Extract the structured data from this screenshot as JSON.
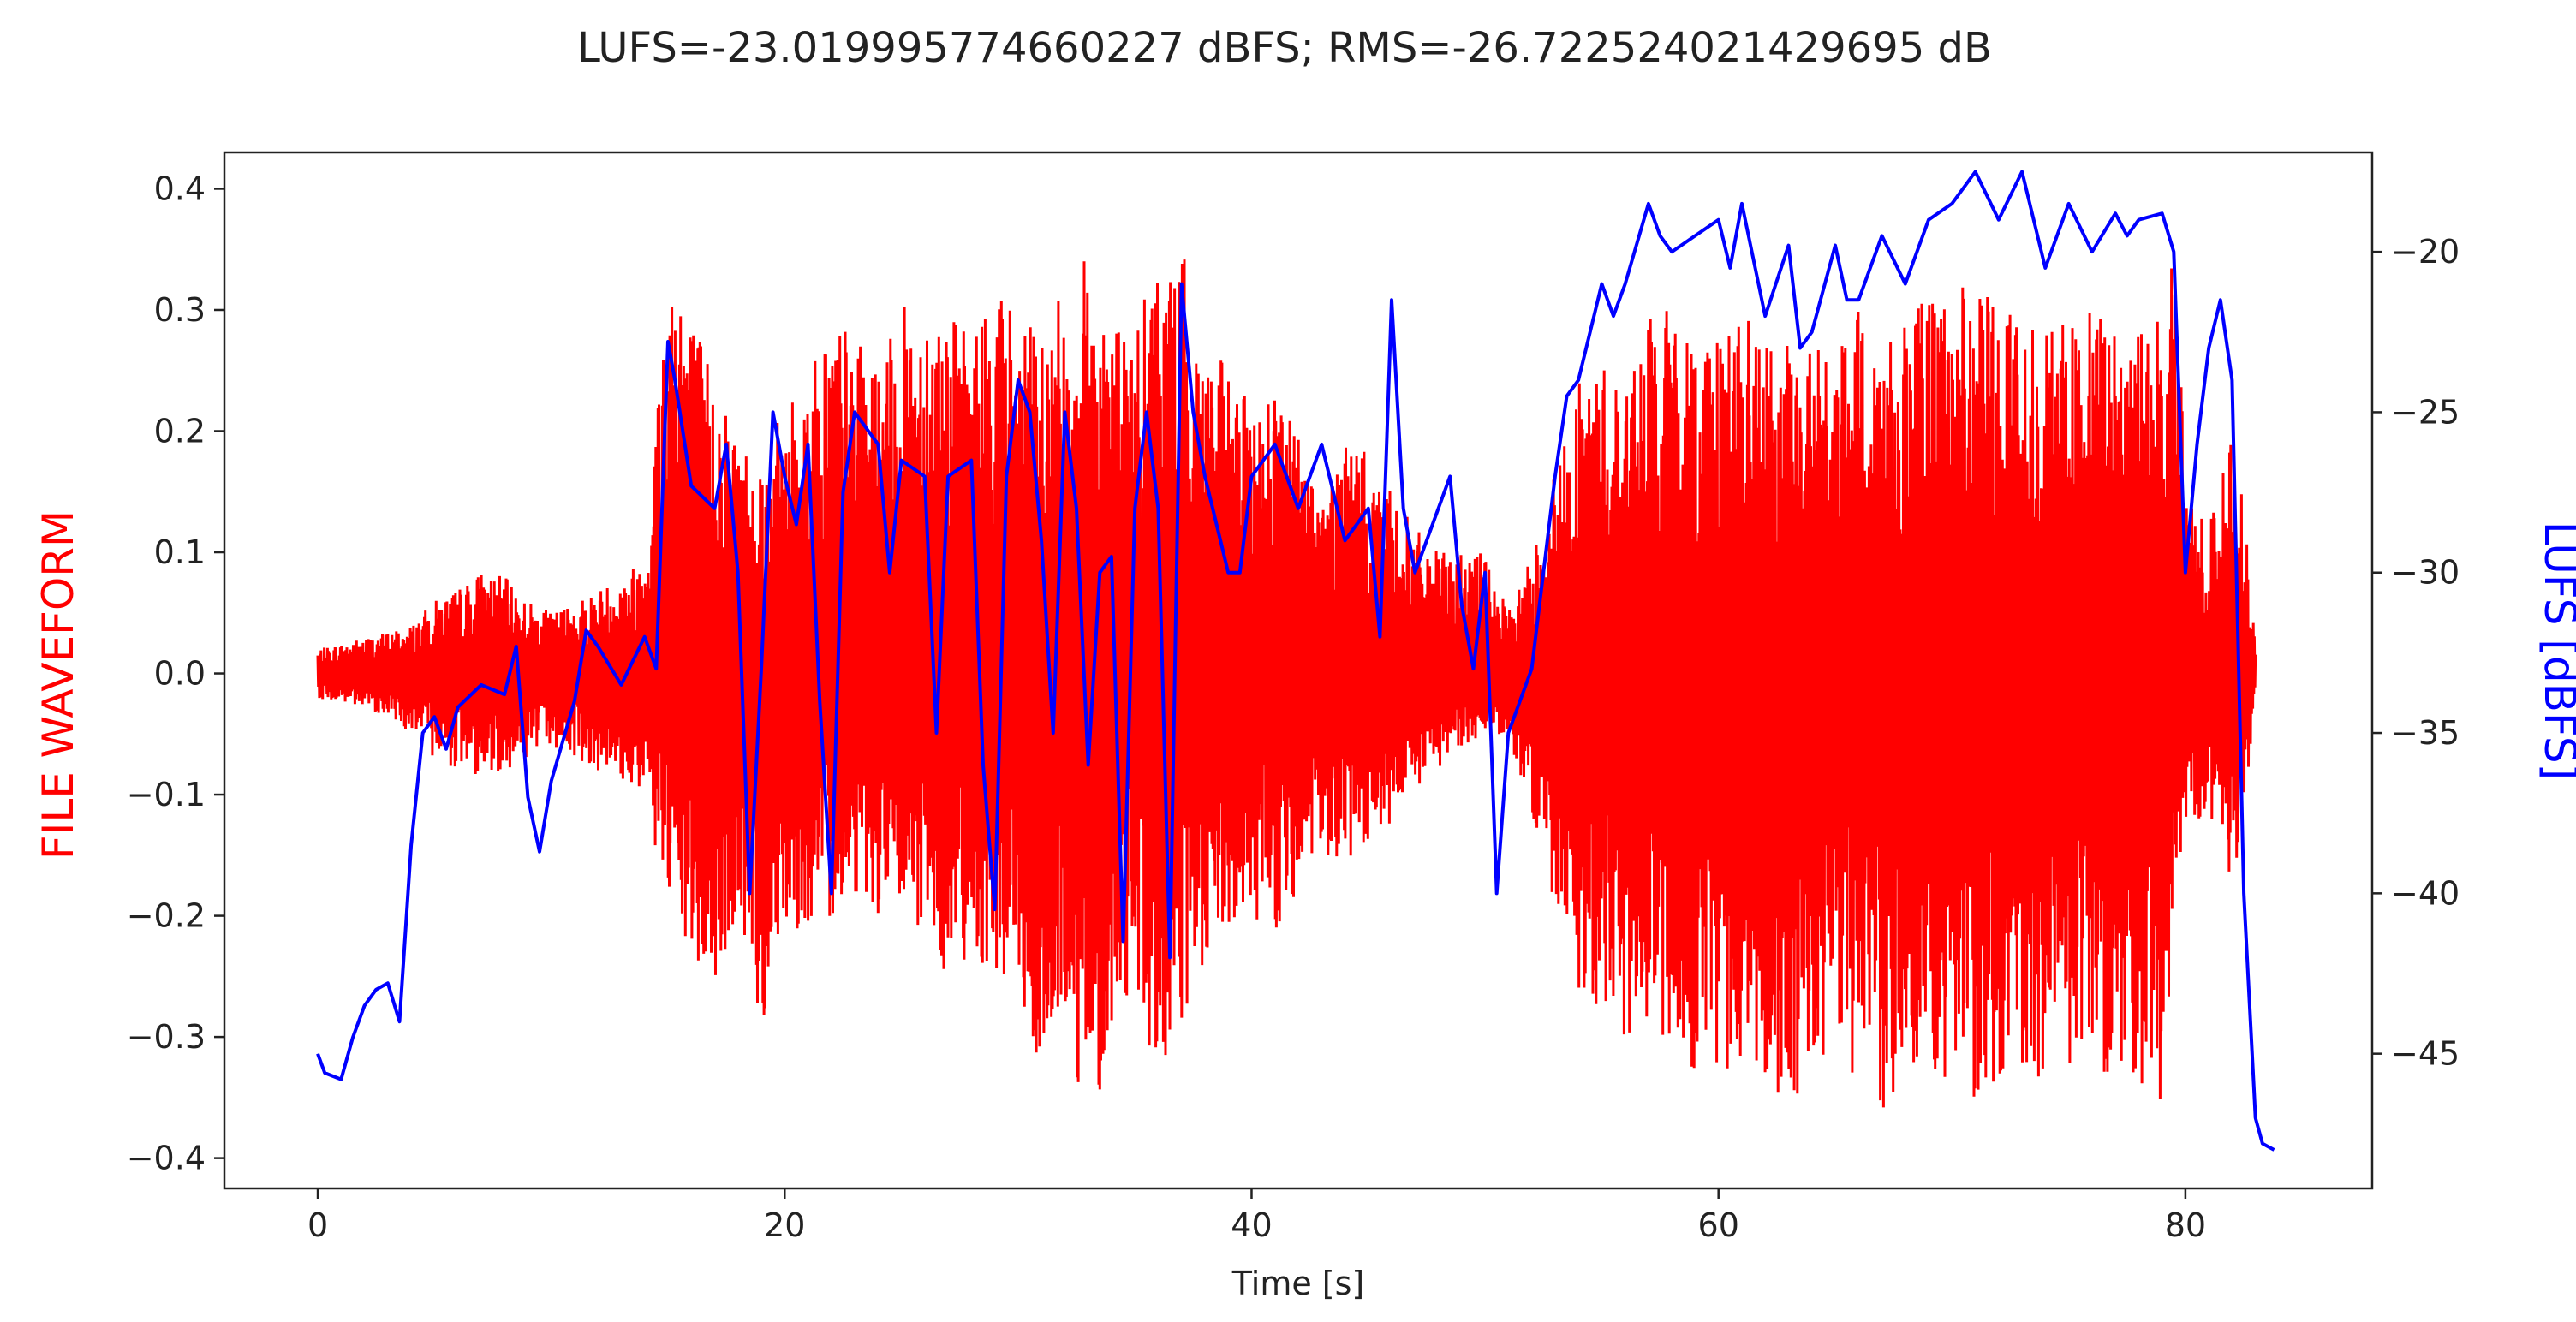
{
  "chart_data": {
    "type": "line",
    "title": "LUFS=-23.019995774660227 dBFS; RMS=-26.722524021429695 dB",
    "xlabel": "Time [s]",
    "ylabel_left": "FILE WAVEFORM",
    "ylabel_right": "LUFS [dBFS]",
    "xlim": [
      -4,
      88
    ],
    "ylim_left": [
      -0.425,
      0.43
    ],
    "ylim_right": [
      -49.2,
      -16.9
    ],
    "x_ticks": [
      0,
      20,
      40,
      60,
      80
    ],
    "y_left_ticks": [
      0.4,
      0.3,
      0.2,
      0.1,
      0.0,
      -0.1,
      -0.2,
      -0.3,
      -0.4
    ],
    "y_left_tick_labels": [
      "0.4",
      "0.3",
      "0.2",
      "0.1",
      "0.0",
      "−0.1",
      "−0.2",
      "−0.3",
      "−0.4"
    ],
    "y_right_ticks": [
      -20,
      -25,
      -30,
      -35,
      -40,
      -45
    ],
    "y_right_tick_labels": [
      "−20",
      "−25",
      "−30",
      "−35",
      "−40",
      "−45"
    ],
    "grid": false,
    "colors": {
      "waveform": "#ff0000",
      "lufs": "#0000ff",
      "axes": "#222222"
    },
    "series": [
      {
        "name": "FILE WAVEFORM",
        "axis": "left",
        "style": "waveform",
        "envelope_upper": [
          [
            0,
            0.02
          ],
          [
            1,
            0.025
          ],
          [
            2,
            0.03
          ],
          [
            3,
            0.035
          ],
          [
            4,
            0.04
          ],
          [
            5,
            0.06
          ],
          [
            6,
            0.07
          ],
          [
            7,
            0.085
          ],
          [
            8,
            0.08
          ],
          [
            9,
            0.06
          ],
          [
            10,
            0.05
          ],
          [
            11,
            0.06
          ],
          [
            12,
            0.07
          ],
          [
            13,
            0.08
          ],
          [
            14,
            0.1
          ],
          [
            15,
            0.35
          ],
          [
            15.5,
            0.37
          ],
          [
            16,
            0.3
          ],
          [
            17,
            0.25
          ],
          [
            18,
            0.2
          ],
          [
            19,
            0.18
          ],
          [
            20,
            0.22
          ],
          [
            21,
            0.25
          ],
          [
            22,
            0.3
          ],
          [
            23,
            0.28
          ],
          [
            24,
            0.25
          ],
          [
            25,
            0.3
          ],
          [
            26,
            0.32
          ],
          [
            27,
            0.3
          ],
          [
            28,
            0.28
          ],
          [
            29,
            0.33
          ],
          [
            30,
            0.3
          ],
          [
            31,
            0.28
          ],
          [
            32,
            0.32
          ],
          [
            33,
            0.35
          ],
          [
            34,
            0.3
          ],
          [
            35,
            0.28
          ],
          [
            36,
            0.35
          ],
          [
            37,
            0.35
          ],
          [
            38,
            0.28
          ],
          [
            39,
            0.25
          ],
          [
            40,
            0.22
          ],
          [
            41,
            0.25
          ],
          [
            42,
            0.2
          ],
          [
            43,
            0.15
          ],
          [
            44,
            0.2
          ],
          [
            45,
            0.18
          ],
          [
            46,
            0.15
          ],
          [
            47,
            0.12
          ],
          [
            48,
            0.1
          ],
          [
            49,
            0.1
          ],
          [
            50,
            0.1
          ],
          [
            51,
            0.05
          ],
          [
            52,
            0.1
          ],
          [
            53,
            0.17
          ],
          [
            54,
            0.24
          ],
          [
            55,
            0.26
          ],
          [
            56,
            0.24
          ],
          [
            57,
            0.3
          ],
          [
            58,
            0.3
          ],
          [
            59,
            0.28
          ],
          [
            60,
            0.3
          ],
          [
            61,
            0.3
          ],
          [
            62,
            0.28
          ],
          [
            63,
            0.27
          ],
          [
            64,
            0.28
          ],
          [
            65,
            0.26
          ],
          [
            66,
            0.3
          ],
          [
            67,
            0.28
          ],
          [
            68,
            0.3
          ],
          [
            69,
            0.31
          ],
          [
            70,
            0.32
          ],
          [
            71,
            0.32
          ],
          [
            72,
            0.31
          ],
          [
            73,
            0.3
          ],
          [
            74,
            0.3
          ],
          [
            75,
            0.29
          ],
          [
            76,
            0.3
          ],
          [
            77,
            0.29
          ],
          [
            78,
            0.29
          ],
          [
            79,
            0.3
          ],
          [
            79.5,
            0.4
          ],
          [
            80,
            0.15
          ],
          [
            81,
            0.12
          ],
          [
            82,
            0.2
          ],
          [
            82.5,
            0.14
          ],
          [
            83,
            0.02
          ]
        ],
        "envelope_lower": [
          [
            0,
            -0.02
          ],
          [
            1,
            -0.025
          ],
          [
            2,
            -0.03
          ],
          [
            3,
            -0.035
          ],
          [
            4,
            -0.05
          ],
          [
            5,
            -0.07
          ],
          [
            6,
            -0.08
          ],
          [
            7,
            -0.085
          ],
          [
            8,
            -0.08
          ],
          [
            9,
            -0.07
          ],
          [
            10,
            -0.06
          ],
          [
            11,
            -0.07
          ],
          [
            12,
            -0.08
          ],
          [
            13,
            -0.09
          ],
          [
            14,
            -0.1
          ],
          [
            15,
            -0.2
          ],
          [
            16,
            -0.24
          ],
          [
            17,
            -0.27
          ],
          [
            18,
            -0.2
          ],
          [
            19,
            -0.3
          ],
          [
            20,
            -0.2
          ],
          [
            21,
            -0.22
          ],
          [
            22,
            -0.2
          ],
          [
            23,
            -0.18
          ],
          [
            24,
            -0.2
          ],
          [
            25,
            -0.2
          ],
          [
            26,
            -0.22
          ],
          [
            27,
            -0.25
          ],
          [
            28,
            -0.23
          ],
          [
            29,
            -0.25
          ],
          [
            30,
            -0.26
          ],
          [
            31,
            -0.35
          ],
          [
            32,
            -0.28
          ],
          [
            33,
            -0.39
          ],
          [
            34,
            -0.3
          ],
          [
            35,
            -0.25
          ],
          [
            36,
            -0.35
          ],
          [
            37,
            -0.3
          ],
          [
            38,
            -0.25
          ],
          [
            39,
            -0.22
          ],
          [
            40,
            -0.2
          ],
          [
            41,
            -0.22
          ],
          [
            42,
            -0.18
          ],
          [
            43,
            -0.16
          ],
          [
            44,
            -0.16
          ],
          [
            45,
            -0.15
          ],
          [
            46,
            -0.13
          ],
          [
            47,
            -0.1
          ],
          [
            48,
            -0.08
          ],
          [
            49,
            -0.06
          ],
          [
            50,
            -0.05
          ],
          [
            51,
            -0.05
          ],
          [
            52,
            -0.12
          ],
          [
            53,
            -0.2
          ],
          [
            54,
            -0.26
          ],
          [
            55,
            -0.28
          ],
          [
            56,
            -0.3
          ],
          [
            57,
            -0.3
          ],
          [
            58,
            -0.32
          ],
          [
            59,
            -0.33
          ],
          [
            60,
            -0.35
          ],
          [
            61,
            -0.32
          ],
          [
            62,
            -0.33
          ],
          [
            63,
            -0.36
          ],
          [
            64,
            -0.34
          ],
          [
            65,
            -0.33
          ],
          [
            66,
            -0.34
          ],
          [
            67,
            -0.38
          ],
          [
            68,
            -0.32
          ],
          [
            69,
            -0.34
          ],
          [
            70,
            -0.35
          ],
          [
            71,
            -0.35
          ],
          [
            72,
            -0.34
          ],
          [
            73,
            -0.34
          ],
          [
            74,
            -0.33
          ],
          [
            75,
            -0.33
          ],
          [
            76,
            -0.34
          ],
          [
            77,
            -0.33
          ],
          [
            78,
            -0.34
          ],
          [
            79,
            -0.37
          ],
          [
            80,
            -0.12
          ],
          [
            81,
            -0.12
          ],
          [
            82,
            -0.18
          ],
          [
            82.5,
            -0.12
          ],
          [
            83,
            -0.02
          ]
        ]
      },
      {
        "name": "LUFS [dBFS]",
        "axis": "right",
        "style": "line",
        "points": [
          [
            0,
            -45
          ],
          [
            0.3,
            -45.6
          ],
          [
            1,
            -45.8
          ],
          [
            1.5,
            -44.5
          ],
          [
            2,
            -43.5
          ],
          [
            2.5,
            -43
          ],
          [
            3,
            -42.8
          ],
          [
            3.5,
            -44
          ],
          [
            4,
            -38.5
          ],
          [
            4.5,
            -35
          ],
          [
            5,
            -34.5
          ],
          [
            5.5,
            -35.5
          ],
          [
            6,
            -34.2
          ],
          [
            7,
            -33.5
          ],
          [
            8,
            -33.8
          ],
          [
            8.5,
            -32.3
          ],
          [
            9,
            -37
          ],
          [
            9.5,
            -38.7
          ],
          [
            10,
            -36.5
          ],
          [
            11,
            -34
          ],
          [
            11.5,
            -31.8
          ],
          [
            12,
            -32.3
          ],
          [
            13,
            -33.5
          ],
          [
            14,
            -32
          ],
          [
            14.5,
            -33
          ],
          [
            15,
            -22.8
          ],
          [
            15.3,
            -24
          ],
          [
            16,
            -27.3
          ],
          [
            17,
            -28
          ],
          [
            17.5,
            -26
          ],
          [
            18,
            -30
          ],
          [
            18.5,
            -40
          ],
          [
            19,
            -33
          ],
          [
            19.5,
            -25
          ],
          [
            20,
            -27
          ],
          [
            20.5,
            -28.5
          ],
          [
            21,
            -26
          ],
          [
            21.5,
            -34
          ],
          [
            22,
            -40
          ],
          [
            22.5,
            -27.5
          ],
          [
            23,
            -25
          ],
          [
            24,
            -26
          ],
          [
            24.5,
            -30
          ],
          [
            25,
            -26.5
          ],
          [
            26,
            -27
          ],
          [
            26.5,
            -35
          ],
          [
            27,
            -27
          ],
          [
            28,
            -26.5
          ],
          [
            28.5,
            -36
          ],
          [
            29,
            -40.5
          ],
          [
            29.5,
            -27
          ],
          [
            30,
            -24
          ],
          [
            30.5,
            -25
          ],
          [
            31,
            -29
          ],
          [
            31.5,
            -35
          ],
          [
            32,
            -25
          ],
          [
            32.5,
            -28
          ],
          [
            33,
            -36
          ],
          [
            33.5,
            -30
          ],
          [
            34,
            -29.5
          ],
          [
            34.5,
            -41.5
          ],
          [
            35,
            -28
          ],
          [
            35.5,
            -25
          ],
          [
            36,
            -28
          ],
          [
            36.5,
            -42
          ],
          [
            37,
            -21
          ],
          [
            37.5,
            -25
          ],
          [
            38,
            -27
          ],
          [
            39,
            -30
          ],
          [
            39.5,
            -30
          ],
          [
            40,
            -27
          ],
          [
            41,
            -26
          ],
          [
            42,
            -28
          ],
          [
            43,
            -26
          ],
          [
            44,
            -29
          ],
          [
            45,
            -28
          ],
          [
            45.5,
            -32
          ],
          [
            46,
            -21.5
          ],
          [
            46.5,
            -28
          ],
          [
            47,
            -30
          ],
          [
            48,
            -28
          ],
          [
            48.5,
            -27
          ],
          [
            49,
            -31
          ],
          [
            49.5,
            -33
          ],
          [
            50,
            -30
          ],
          [
            50.5,
            -40
          ],
          [
            51,
            -35
          ],
          [
            52,
            -33
          ],
          [
            53,
            -27
          ],
          [
            53.5,
            -24.5
          ],
          [
            54,
            -24
          ],
          [
            55,
            -21
          ],
          [
            55.5,
            -22
          ],
          [
            56,
            -21
          ],
          [
            57,
            -18.5
          ],
          [
            57.5,
            -19.5
          ],
          [
            58,
            -20
          ],
          [
            59,
            -19.5
          ],
          [
            60,
            -19
          ],
          [
            60.5,
            -20.5
          ],
          [
            61,
            -18.5
          ],
          [
            62,
            -22
          ],
          [
            63,
            -19.8
          ],
          [
            63.5,
            -23
          ],
          [
            64,
            -22.5
          ],
          [
            65,
            -19.8
          ],
          [
            65.5,
            -21.5
          ],
          [
            66,
            -21.5
          ],
          [
            67,
            -19.5
          ],
          [
            68,
            -21
          ],
          [
            69,
            -19
          ],
          [
            70,
            -18.5
          ],
          [
            71,
            -17.5
          ],
          [
            72,
            -19
          ],
          [
            73,
            -17.5
          ],
          [
            74,
            -20.5
          ],
          [
            75,
            -18.5
          ],
          [
            76,
            -20
          ],
          [
            77,
            -18.8
          ],
          [
            77.5,
            -19.5
          ],
          [
            78,
            -19
          ],
          [
            79,
            -18.8
          ],
          [
            79.5,
            -20
          ],
          [
            80,
            -30
          ],
          [
            80.5,
            -26
          ],
          [
            81,
            -23
          ],
          [
            81.5,
            -21.5
          ],
          [
            82,
            -24
          ],
          [
            82.5,
            -40
          ],
          [
            83,
            -47
          ],
          [
            83.3,
            -47.8
          ],
          [
            83.8,
            -48
          ]
        ]
      }
    ]
  }
}
